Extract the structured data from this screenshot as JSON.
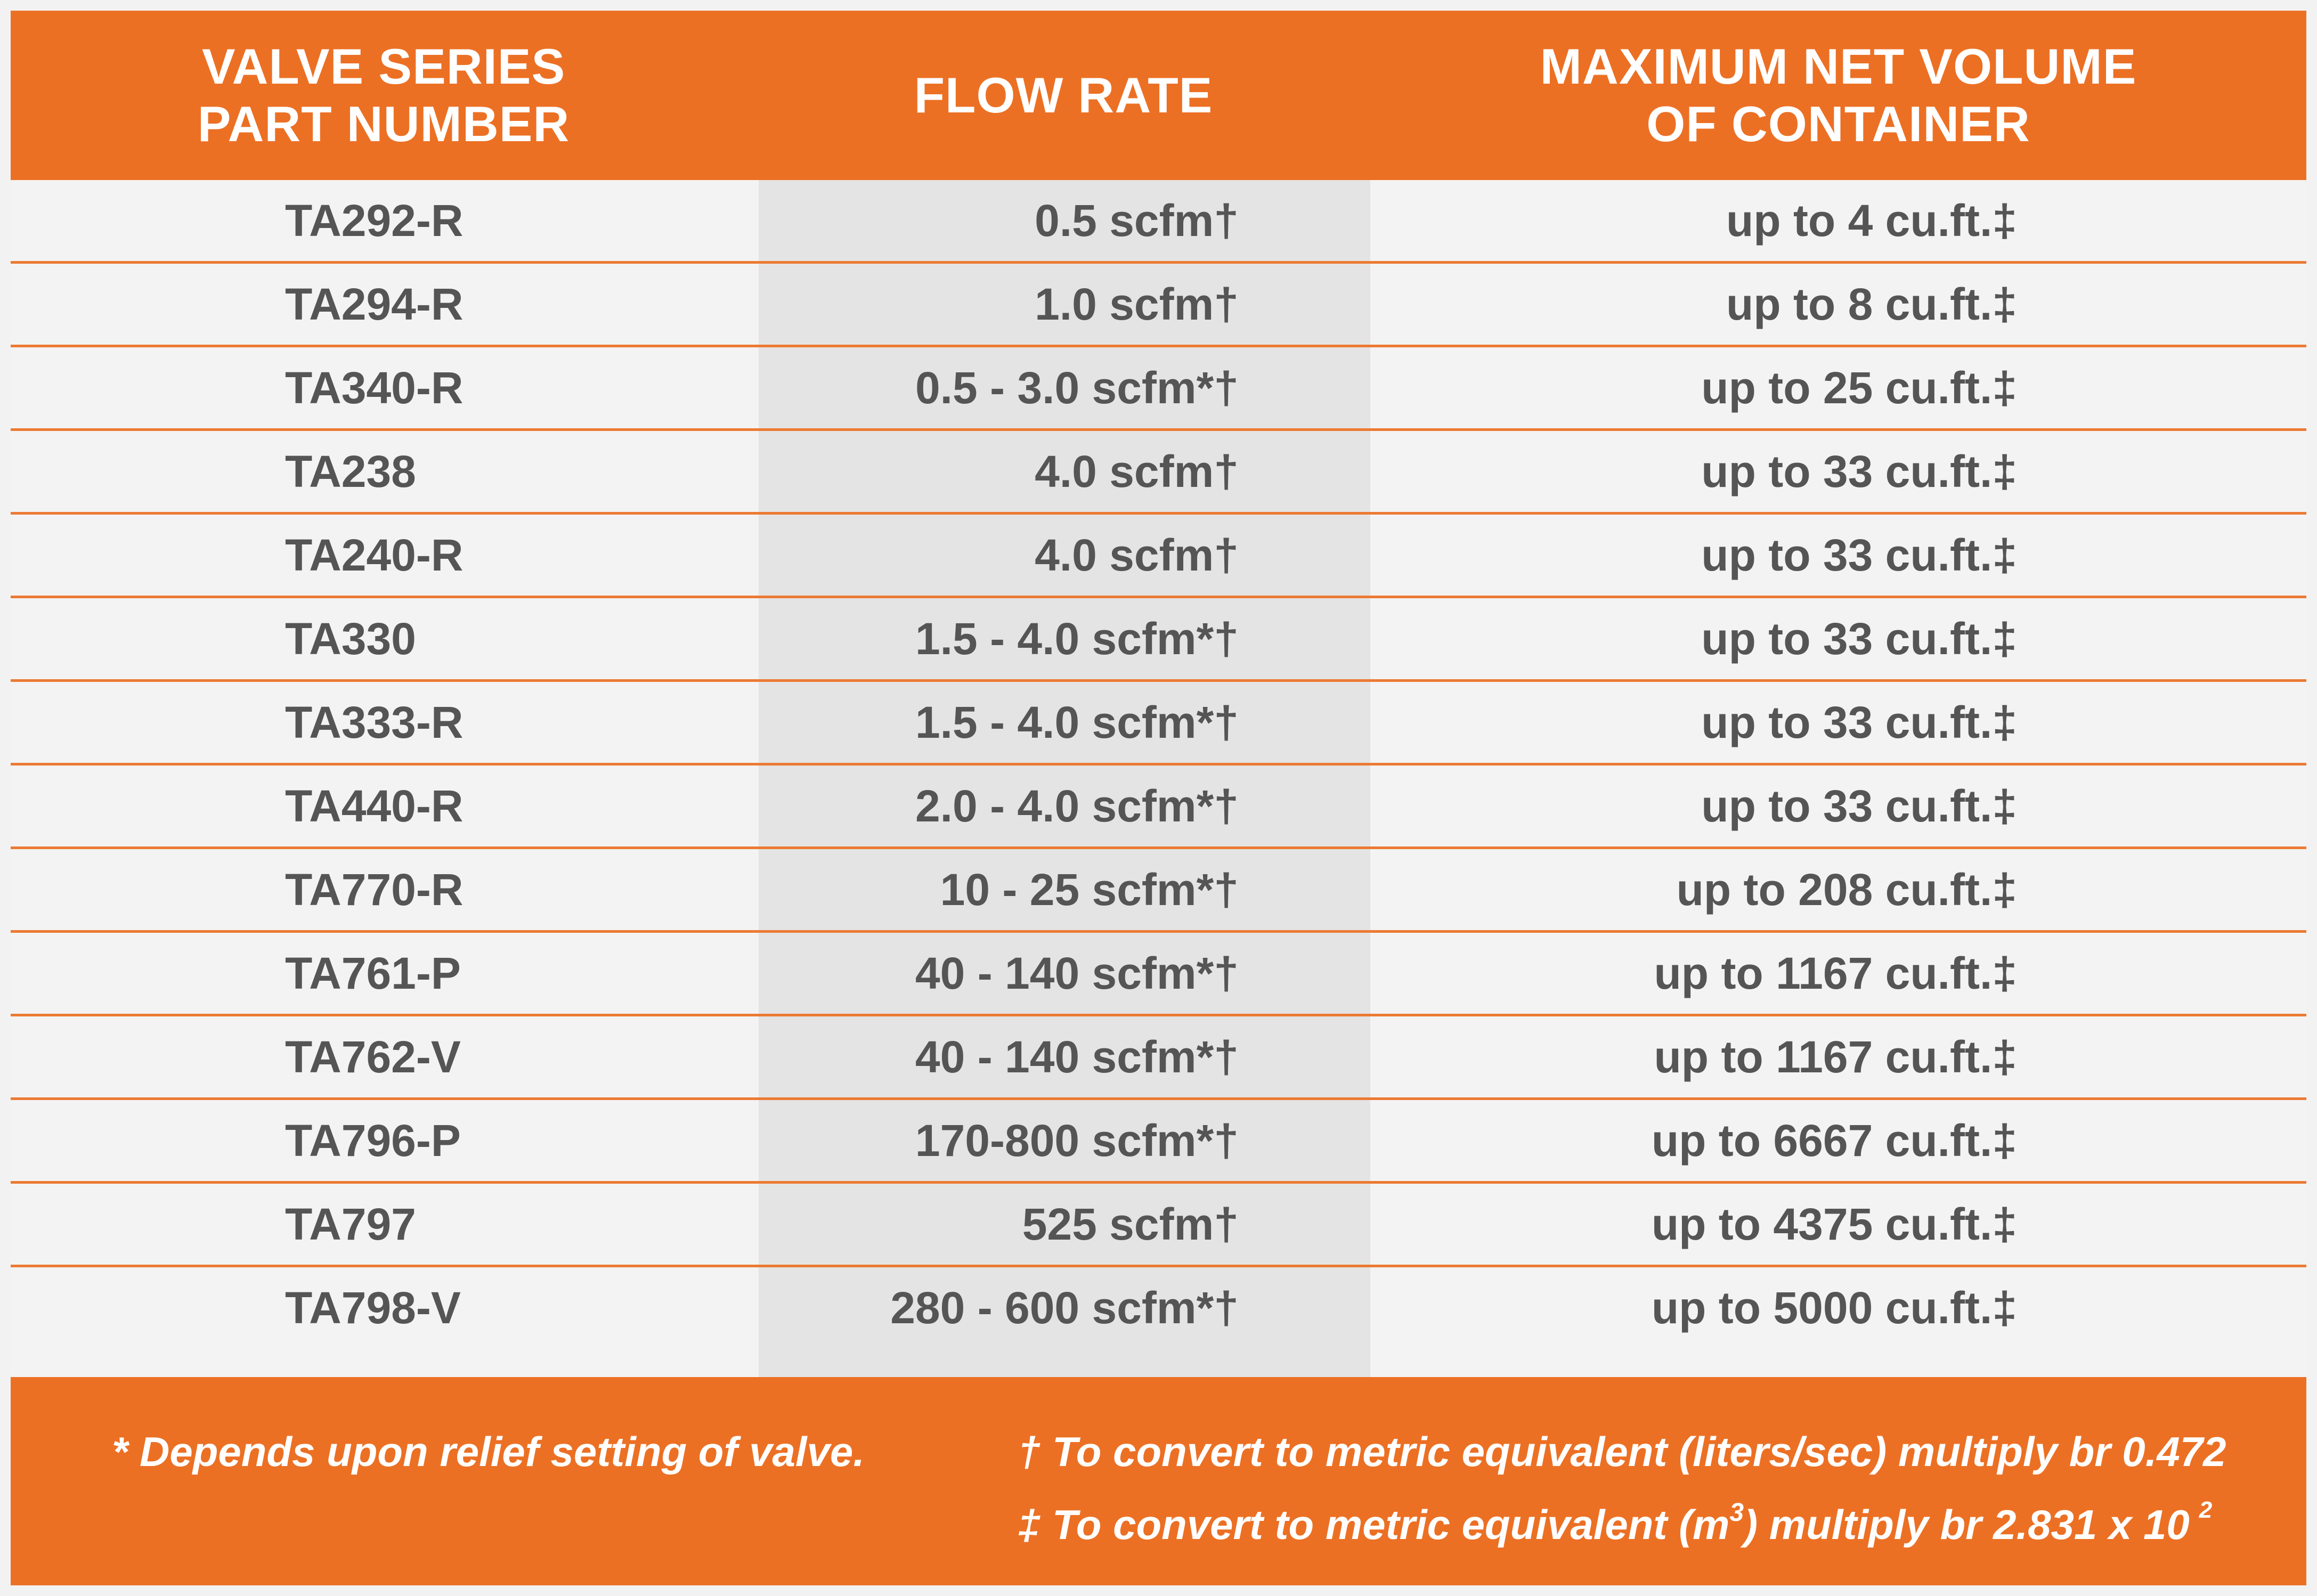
{
  "header": {
    "col1_line1": "VALVE SERIES",
    "col1_line2": "PART NUMBER",
    "col2": "FLOW RATE",
    "col3_line1": "MAXIMUM NET VOLUME",
    "col3_line2": "OF CONTAINER"
  },
  "rows": [
    {
      "part": "TA292-R",
      "flow": "0.5 scfm†",
      "volume": "up to 4 cu.ft.‡"
    },
    {
      "part": "TA294-R",
      "flow": "1.0 scfm†",
      "volume": "up to 8 cu.ft.‡"
    },
    {
      "part": "TA340-R",
      "flow": "0.5 - 3.0  scfm*†",
      "volume": "up to 25 cu.ft.‡"
    },
    {
      "part": "TA238",
      "flow": "4.0 scfm†",
      "volume": "up to 33 cu.ft.‡"
    },
    {
      "part": "TA240-R",
      "flow": "4.0 scfm†",
      "volume": "up to 33 cu.ft.‡"
    },
    {
      "part": "TA330",
      "flow": "1.5 - 4.0  scfm*†",
      "volume": "up to 33 cu.ft.‡"
    },
    {
      "part": "TA333-R",
      "flow": "1.5 - 4.0  scfm*†",
      "volume": "up to 33 cu.ft.‡"
    },
    {
      "part": "TA440-R",
      "flow": "2.0 - 4.0  scfm*†",
      "volume": "up to 33 cu.ft.‡"
    },
    {
      "part": "TA770-R",
      "flow": "10 - 25  scfm*†",
      "volume": "up to 208 cu.ft.‡"
    },
    {
      "part": "TA761-P",
      "flow": "40 - 140  scfm*†",
      "volume": "up to 1167 cu.ft.‡"
    },
    {
      "part": "TA762-V",
      "flow": "40 - 140  scfm*†",
      "volume": "up to 1167 cu.ft.‡"
    },
    {
      "part": "TA796-P",
      "flow": "170-800  scfm*†",
      "volume": "up to 6667 cu.ft.‡"
    },
    {
      "part": "TA797",
      "flow": "525  scfm†",
      "volume": "up to 4375 cu.ft.‡"
    },
    {
      "part": "TA798-V",
      "flow": "280 - 600  scfm*†",
      "volume": "up to 5000 cu.ft.‡"
    }
  ],
  "footnotes": {
    "asterisk": "*  Depends upon relief setting of valve.",
    "dagger": "† To convert to metric equivalent (liters/sec) multiply br 0.472",
    "ddagger_pre": "‡ To convert to metric equivalent (m",
    "ddagger_sup": "3",
    "ddagger_post": ") multiply br 2.831 x 10",
    "ddagger_exp": "2"
  }
}
